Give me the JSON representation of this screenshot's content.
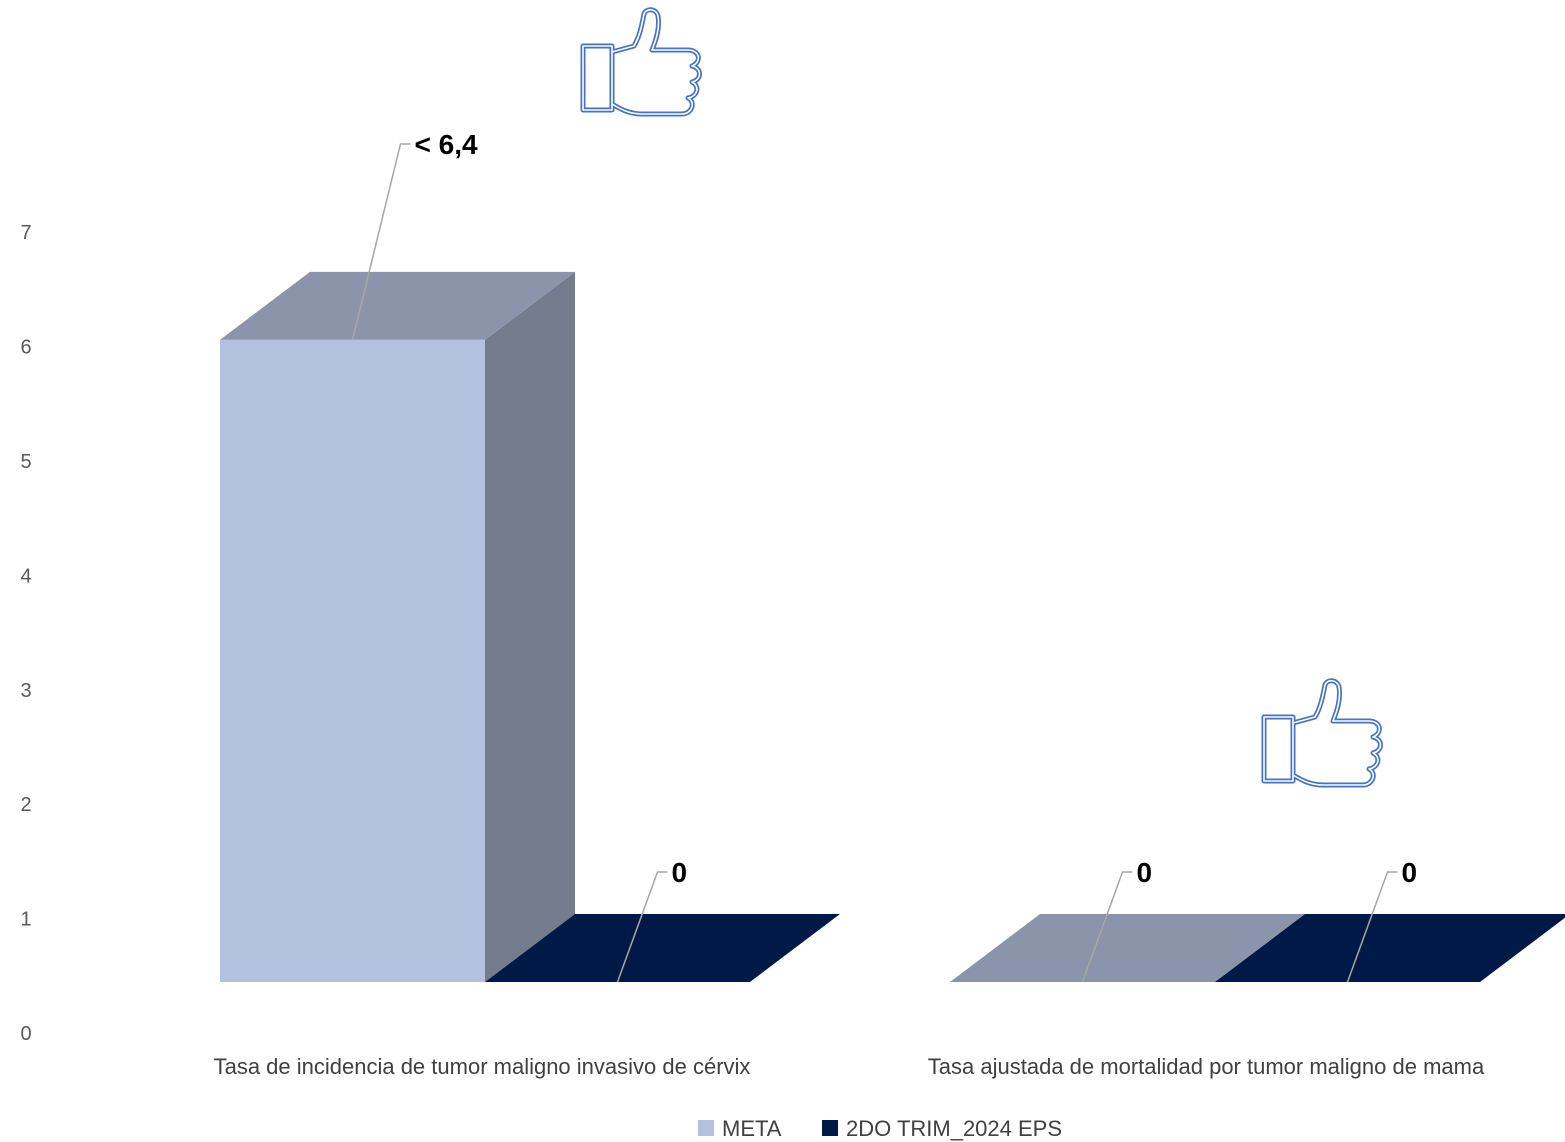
{
  "chart_data": {
    "type": "bar",
    "style": "3d-clustered-column",
    "categories": [
      "Tasa de incidencia de tumor maligno invasivo de cérvix",
      "Tasa ajustada de mortalidad por tumor maligno de mama"
    ],
    "series": [
      {
        "name": "META",
        "values": [
          6.4,
          0
        ],
        "labels": [
          "< 6,4",
          "0"
        ],
        "color": "#b4c1de"
      },
      {
        "name": "2DO TRIM_2024 EPS",
        "values": [
          0,
          0
        ],
        "labels": [
          "0",
          "0"
        ],
        "color": "#001a48"
      }
    ],
    "yticks": [
      "0",
      "1",
      "2",
      "3",
      "4",
      "5",
      "6",
      "7"
    ],
    "ylim": [
      0,
      7
    ],
    "grid": false,
    "legend": "bottom",
    "icons": [
      "thumbs-up-icon",
      "thumbs-up-icon"
    ],
    "colors": {
      "meta_side": "#737d8e",
      "meta_top": "#8a95ab",
      "eps_floor": "#001a48"
    }
  }
}
